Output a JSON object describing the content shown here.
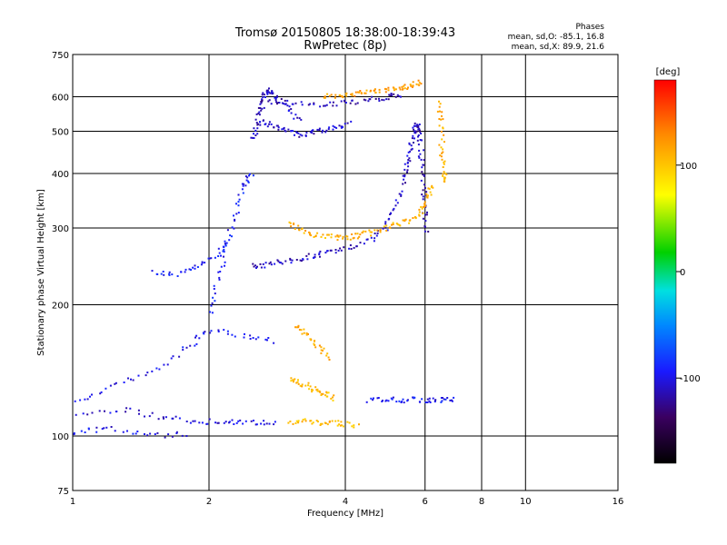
{
  "header": {
    "title_line1": "Tromsø 20150805 18:38:00-18:39:43",
    "title_line2": "RwPretec (8p)"
  },
  "phases_box": {
    "title": "Phases",
    "line_o": "mean, sd,O: -85.1, 16.8",
    "line_x": "mean, sd,X: 89.9, 21.6"
  },
  "colorbar": {
    "label": "[deg]",
    "range": [
      -180,
      180
    ],
    "ticks": [
      100,
      0,
      -100
    ],
    "tick_labels": [
      "100",
      "0",
      "-100"
    ]
  },
  "chart_data": {
    "type": "scatter",
    "xlabel": "Frequency [MHz]",
    "ylabel": "Stationary phase Virtual Height [km]",
    "xscale": "log",
    "yscale": "log",
    "xlim": [
      1,
      16
    ],
    "ylim": [
      75,
      750
    ],
    "x_ticks": [
      1,
      2,
      4,
      6,
      8,
      10,
      16
    ],
    "x_tick_labels": [
      "1",
      "2",
      "4",
      "6",
      "8",
      "10",
      "16"
    ],
    "y_ticks": [
      75,
      100,
      200,
      300,
      400,
      500,
      600,
      750
    ],
    "y_tick_labels": [
      "75",
      "100",
      "200",
      "300",
      "400",
      "500",
      "600",
      "750"
    ],
    "grid": true,
    "color_variable": "phase [deg]",
    "traces": [
      {
        "x": [
          1.0,
          1.2,
          1.5,
          1.8,
          2.0,
          2.4,
          2.8
        ],
        "y": [
          118,
          130,
          140,
          160,
          175,
          170,
          165
        ],
        "phase": -100
      },
      {
        "x": [
          1.0,
          1.3,
          1.6,
          1.9,
          2.2,
          2.5,
          2.85
        ],
        "y": [
          112,
          115,
          110,
          108,
          108,
          107,
          107
        ],
        "phase": -105
      },
      {
        "x": [
          1.0,
          1.2,
          1.5,
          1.8
        ],
        "y": [
          102,
          104,
          100,
          101
        ],
        "phase": -100
      },
      {
        "x": [
          1.5,
          1.7,
          1.9,
          2.1,
          2.2
        ],
        "y": [
          238,
          235,
          245,
          260,
          280
        ],
        "phase": -95
      },
      {
        "x": [
          2.0,
          2.1,
          2.2,
          2.3,
          2.4,
          2.5
        ],
        "y": [
          190,
          230,
          280,
          330,
          380,
          400
        ],
        "phase": -95
      },
      {
        "x": [
          2.5,
          2.55,
          2.6,
          2.65,
          2.7,
          2.8,
          3.0,
          3.2
        ],
        "y": [
          480,
          520,
          560,
          600,
          620,
          600,
          570,
          520
        ],
        "phase": -110
      },
      {
        "x": [
          2.6,
          3.0,
          3.5,
          4.0,
          4.5,
          5.0,
          5.3
        ],
        "y": [
          590,
          580,
          575,
          580,
          590,
          600,
          610
        ],
        "phase": -115
      },
      {
        "x": [
          2.6,
          2.8,
          3.0,
          3.2,
          3.5,
          3.8,
          4.1
        ],
        "y": [
          525,
          515,
          500,
          490,
          500,
          510,
          520
        ],
        "phase": -110
      },
      {
        "x": [
          2.5,
          2.7,
          3.0,
          3.3,
          3.6,
          4.0,
          4.5,
          4.9,
          5.2,
          5.4,
          5.5,
          5.6,
          5.7
        ],
        "y": [
          245,
          248,
          252,
          258,
          262,
          268,
          280,
          300,
          340,
          390,
          430,
          470,
          520
        ],
        "phase": -110
      },
      {
        "x": [
          5.7,
          5.8,
          5.85,
          5.9,
          5.95,
          6.0,
          6.05
        ],
        "y": [
          500,
          520,
          490,
          430,
          380,
          330,
          290
        ],
        "phase": -115
      },
      {
        "x": [
          3.0,
          3.2,
          3.5,
          3.8,
          4.1,
          4.4,
          4.8,
          5.2,
          5.6,
          5.9,
          6.1,
          6.2
        ],
        "y": [
          310,
          295,
          288,
          285,
          286,
          290,
          297,
          305,
          315,
          330,
          350,
          380
        ],
        "phase": 110
      },
      {
        "x": [
          3.6,
          3.9,
          4.2,
          4.5,
          4.9,
          5.3,
          5.6,
          5.9
        ],
        "y": [
          600,
          605,
          610,
          615,
          620,
          630,
          640,
          650
        ],
        "phase": 120
      },
      {
        "x": [
          6.45,
          6.5,
          6.55,
          6.6,
          6.65
        ],
        "y": [
          580,
          520,
          450,
          400,
          380
        ],
        "phase": 110
      },
      {
        "x": [
          3.1,
          3.3,
          3.5,
          3.7
        ],
        "y": [
          180,
          170,
          160,
          150
        ],
        "phase": 115
      },
      {
        "x": [
          3.0,
          3.2,
          3.4,
          3.6,
          3.8
        ],
        "y": [
          135,
          132,
          128,
          125,
          122
        ],
        "phase": 105
      },
      {
        "x": [
          3.0,
          3.3,
          3.6,
          3.9,
          4.3
        ],
        "y": [
          108,
          108,
          107,
          107,
          106
        ],
        "phase": 105
      },
      {
        "x": [
          4.5,
          5.0,
          5.5,
          6.0,
          6.5,
          7.0
        ],
        "y": [
          121,
          121,
          121,
          121,
          121,
          121
        ],
        "phase": -95
      }
    ]
  }
}
